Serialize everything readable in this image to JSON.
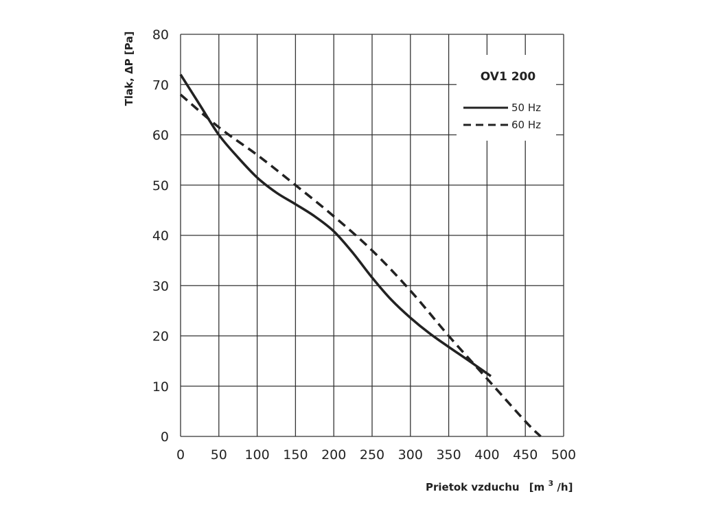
{
  "chart_data": {
    "type": "line",
    "title": "OV1 200",
    "xlabel": "Prietok vzduchu",
    "xlabel_unit_prefix": "[m",
    "xlabel_unit_sup": "3",
    "xlabel_unit_suffix": "/h]",
    "ylabel": "Tlak, ΔP [Pa]",
    "xlim": [
      0,
      500
    ],
    "ylim": [
      0,
      80
    ],
    "xticks": [
      0,
      50,
      100,
      150,
      200,
      250,
      300,
      350,
      400,
      450,
      500
    ],
    "yticks": [
      0,
      10,
      20,
      30,
      40,
      50,
      60,
      70,
      80
    ],
    "grid": true,
    "legend_position": "top-right",
    "series": [
      {
        "name": "50 Hz",
        "style": "solid",
        "color": "#222222",
        "x": [
          0,
          25,
          50,
          75,
          100,
          125,
          150,
          175,
          200,
          225,
          250,
          275,
          300,
          325,
          350,
          375,
          405
        ],
        "y": [
          72,
          66,
          60,
          55.5,
          51.5,
          48.5,
          46.2,
          43.8,
          40.8,
          36.5,
          31.6,
          27.2,
          23.6,
          20.5,
          17.8,
          15.2,
          12
        ]
      },
      {
        "name": "60 Hz",
        "style": "dashed",
        "color": "#222222",
        "x": [
          0,
          50,
          100,
          150,
          200,
          250,
          300,
          350,
          400,
          450,
          470
        ],
        "y": [
          68,
          61.5,
          56,
          50,
          43.8,
          37,
          29,
          20,
          11.5,
          3,
          0
        ]
      }
    ]
  }
}
